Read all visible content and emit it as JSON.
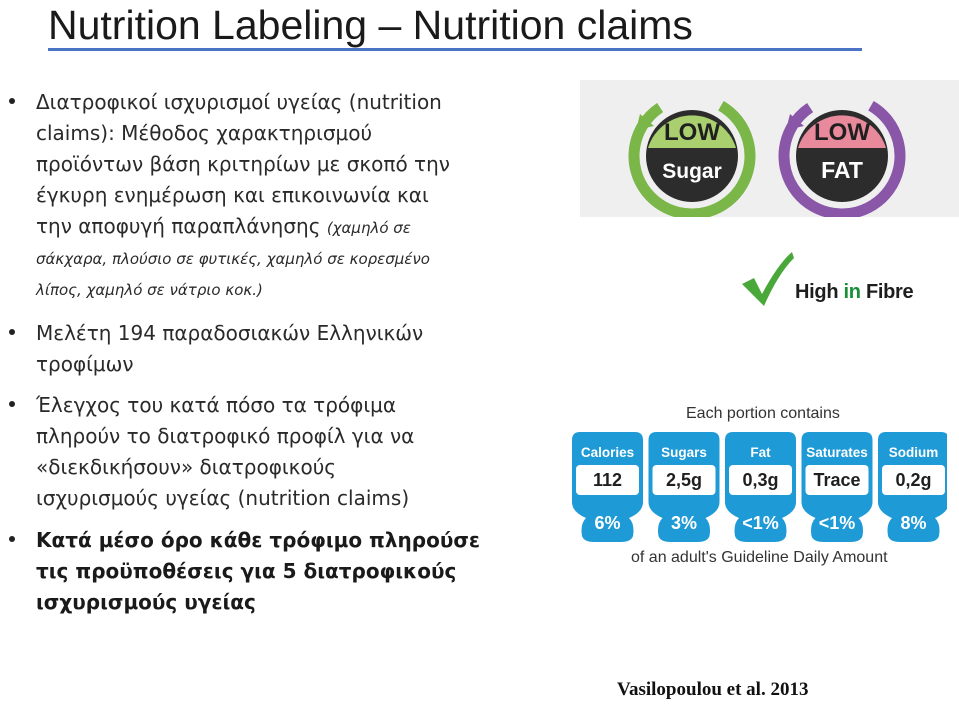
{
  "title": "Nutrition Labeling – Nutrition claims",
  "bullets": [
    {
      "lines": [
        "Διατροφικοί ισχυρισμοί υγείας (nutrition",
        "claims): Μέθοδος  χαρακτηρισμού",
        "προϊόντων βάση κριτηρίων με σκοπό την",
        "έγκυρη ενημέρωση και επικοινωνία και",
        "την αποφυγή παραπλάνησης"
      ],
      "italic_inline": "(χαμηλό σε",
      "italic_lines": [
        "σάκχαρα, πλούσιο σε φυτικές, χαμηλό σε κορεσμένο",
        "λίπος, χαμηλό σε νάτριο κοκ.)"
      ]
    },
    {
      "lines": [
        "Μελέτη 194 παραδοσιακών Ελληνικών",
        "τροφίμων"
      ]
    },
    {
      "lines": [
        "Έλεγχος του κατά πόσο τα τρόφιμα",
        "πληρούν το διατροφικό προφίλ για να",
        "«διεκδικήσουν» διατροφικούς",
        "ισχυρισμούς υγείας (nutrition claims)"
      ]
    },
    {
      "lines": [
        "Κατά μέσο όρο κάθε τρόφιμο πληρούσε",
        "τις προϋποθέσεις για 5 διατροφικούς",
        "ισχυρισμούς υγείας"
      ]
    }
  ],
  "badges": {
    "sugar": {
      "top": "LOW",
      "bottom": "Sugar",
      "ring_color": "#7ab648",
      "top_color": "#a9cf6e"
    },
    "fat": {
      "top": "LOW",
      "bottom": "FAT",
      "ring_color": "#8a56a8",
      "top_color": "#e88a9b"
    },
    "fibre": {
      "prefix": "High",
      "middle": "in",
      "suffix": "Fibre",
      "check_icon": "check-icon"
    }
  },
  "gda": {
    "header": "Each portion contains",
    "footer": "of an adult's Guideline Daily Amount",
    "color": "#1e9ad6",
    "items": [
      {
        "label": "Calories",
        "amount": "112",
        "percent": "6%"
      },
      {
        "label": "Sugars",
        "amount": "2,5g",
        "percent": "3%"
      },
      {
        "label": "Fat",
        "amount": "0,3g",
        "percent": "<1%"
      },
      {
        "label": "Saturates",
        "amount": "Trace",
        "percent": "<1%"
      },
      {
        "label": "Sodium",
        "amount": "0,2g",
        "percent": "8%"
      }
    ]
  },
  "citation": "Vasilopoulou et al. 2013"
}
